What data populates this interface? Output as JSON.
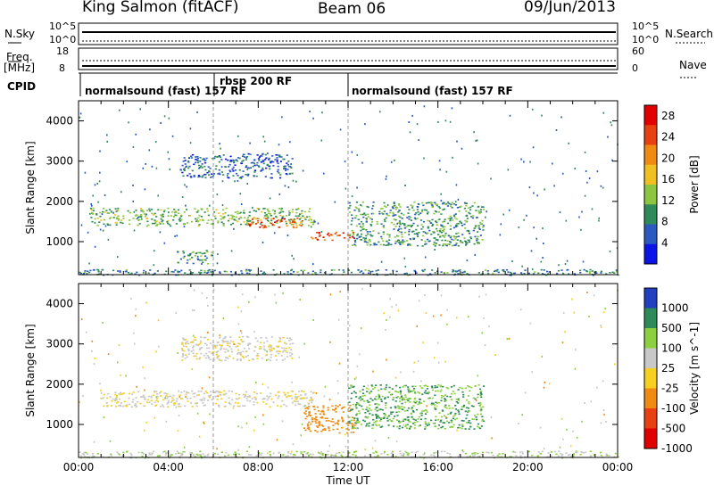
{
  "header": {
    "station": "King Salmon (fitACF)",
    "beam": "Beam 06",
    "date": "09/Jun/2013"
  },
  "strip_labels": {
    "nsky": "N.Sky",
    "nsearch": "N.Search",
    "freq": "Freq.",
    "freq_unit": "[MHz]",
    "nave": "Nave",
    "cpid": "CPID",
    "nsky_ticks": [
      "10^5",
      "10^0"
    ],
    "nsearch_ticks": [
      "10^5",
      "10^0"
    ],
    "freq_ticks": [
      "18",
      "8"
    ],
    "nave_ticks": [
      "60",
      "0"
    ]
  },
  "cpid_segments": [
    {
      "label": "normalsound (fast) 157 RF",
      "start_hour": 0
    },
    {
      "label": "rbsp 200 RF",
      "start_hour": 6.0
    },
    {
      "label": "normalsound (fast) 157 RF",
      "start_hour": 12.0
    }
  ],
  "chart_data": [
    {
      "type": "heatmap",
      "parameter": "power",
      "xlabel": "Time UT",
      "ylabel": "Slant Range [km]",
      "xlim": [
        0,
        24
      ],
      "ylim": [
        180,
        4500
      ],
      "x_ticks": [
        "00:00",
        "04:00",
        "08:00",
        "12:00",
        "16:00",
        "20:00",
        "00:00"
      ],
      "y_ticks": [
        1000,
        2000,
        3000,
        4000
      ],
      "colorbar": {
        "label": "Power [dB]",
        "ticks": [
          4,
          8,
          12,
          16,
          20,
          24,
          28
        ],
        "range": [
          0,
          30
        ]
      },
      "regions": [
        {
          "hours": [
            0.5,
            10.5
          ],
          "range_km": [
            1400,
            1850
          ],
          "value": 12
        },
        {
          "hours": [
            7.5,
            10.0
          ],
          "range_km": [
            1350,
            1600
          ],
          "value": 24
        },
        {
          "hours": [
            10.3,
            12.3
          ],
          "range_km": [
            1050,
            1250
          ],
          "value": 24
        },
        {
          "hours": [
            12.0,
            18.0
          ],
          "range_km": [
            900,
            2000
          ],
          "value": 10
        },
        {
          "hours": [
            4.5,
            9.5
          ],
          "range_km": [
            2600,
            3200
          ],
          "value": 6
        },
        {
          "hours": [
            4.3,
            6.0
          ],
          "range_km": [
            450,
            800
          ],
          "value": 10
        },
        {
          "hours": [
            0.0,
            24.0
          ],
          "range_km": [
            180,
            320
          ],
          "value": 8
        }
      ]
    },
    {
      "type": "heatmap",
      "parameter": "velocity",
      "xlabel": "Time UT",
      "ylabel": "Slant Range [km]",
      "xlim": [
        0,
        24
      ],
      "ylim": [
        180,
        4500
      ],
      "x_ticks": [
        "00:00",
        "04:00",
        "08:00",
        "12:00",
        "16:00",
        "20:00",
        "00:00"
      ],
      "y_ticks": [
        1000,
        2000,
        3000,
        4000
      ],
      "colorbar": {
        "label": "Velocity [m s^-1]",
        "ticks": [
          1000,
          500,
          100,
          25,
          -25,
          -100,
          -500,
          -1000
        ]
      },
      "regions": [
        {
          "hours": [
            1.0,
            10.5
          ],
          "range_km": [
            1450,
            1850
          ],
          "value": 0
        },
        {
          "hours": [
            10.0,
            12.3
          ],
          "range_km": [
            800,
            1500
          ],
          "value": -200
        },
        {
          "hours": [
            12.0,
            18.0
          ],
          "range_km": [
            900,
            2000
          ],
          "value": 300
        },
        {
          "hours": [
            4.5,
            9.5
          ],
          "range_km": [
            2600,
            3200
          ],
          "value": 0
        },
        {
          "hours": [
            0.0,
            24.0
          ],
          "range_km": [
            180,
            350
          ],
          "value": 50
        }
      ]
    }
  ],
  "colors": {
    "power_scale": [
      "#0a14e6",
      "#2a5abf",
      "#2f8a5a",
      "#8cc63f",
      "#f0c020",
      "#f08a10",
      "#e84010",
      "#e00000"
    ],
    "velocity_scale": [
      "#e00000",
      "#e84010",
      "#f08a10",
      "#f5d020",
      "#c8c8c8",
      "#8cd040",
      "#2f8a5a",
      "#2040c0"
    ]
  }
}
